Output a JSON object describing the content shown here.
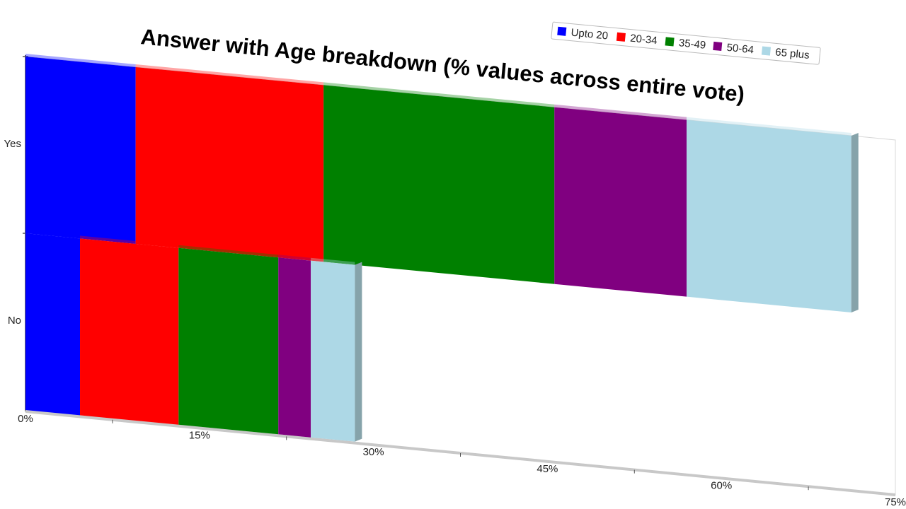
{
  "chart_data": {
    "type": "bar",
    "orientation": "horizontal",
    "stacked": true,
    "title": "Answer with Age breakdown (% values across entire vote)",
    "categories": [
      "Yes",
      "No"
    ],
    "series": [
      {
        "name": "Upto 20",
        "color": "#0000ff",
        "values": [
          9.5,
          4.7
        ]
      },
      {
        "name": "20-34",
        "color": "#ff0000",
        "values": [
          16.2,
          8.5
        ]
      },
      {
        "name": "35-49",
        "color": "#008000",
        "values": [
          19.9,
          8.6
        ]
      },
      {
        "name": "50-64",
        "color": "#800080",
        "values": [
          11.4,
          2.8
        ]
      },
      {
        "name": "65 plus",
        "color": "#add8e6",
        "values": [
          14.2,
          3.8
        ]
      }
    ],
    "x_ticks": [
      "0%",
      "15%",
      "30%",
      "45%",
      "60%",
      "75%"
    ],
    "xlim": [
      0,
      75
    ],
    "legend_position": "top-right",
    "grid": false
  }
}
